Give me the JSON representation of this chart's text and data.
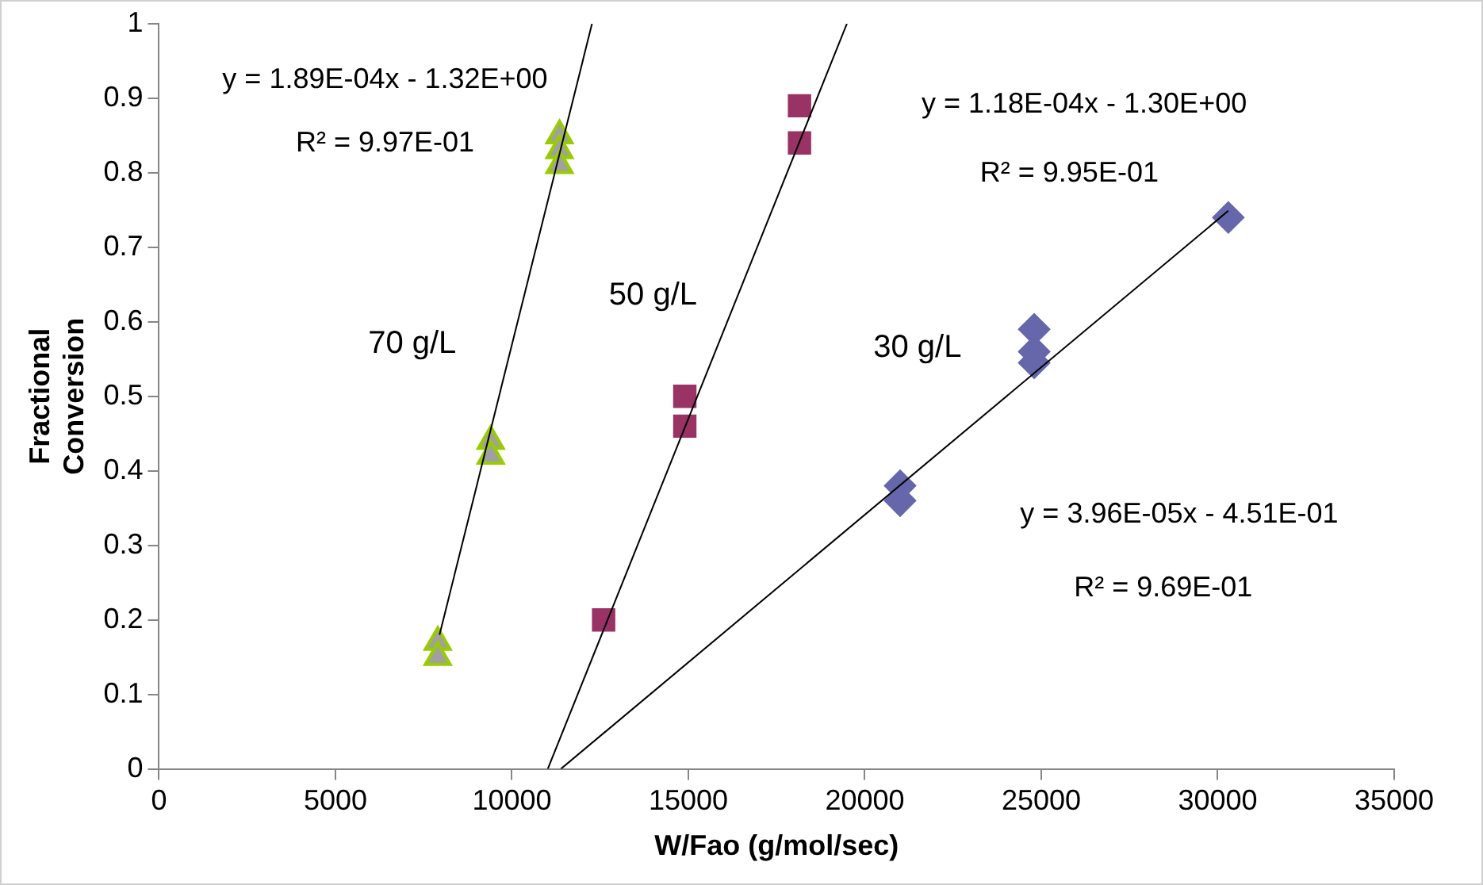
{
  "chart_data": {
    "type": "scatter",
    "xlabel": "W/Fao (g/mol/sec)",
    "ylabel": "Fractional Conversion",
    "xlim": [
      0,
      35000
    ],
    "xticks": [
      0,
      5000,
      10000,
      15000,
      20000,
      25000,
      30000,
      35000
    ],
    "ylim": [
      0,
      1
    ],
    "yticks": [
      0,
      0.1,
      0.2,
      0.3,
      0.4,
      0.5,
      0.6,
      0.7,
      0.8,
      0.9,
      1
    ],
    "grid": false,
    "legend": false,
    "series": [
      {
        "type": "scatter",
        "name": "70 g/L",
        "marker": "triangle",
        "color": "#a0a0a0",
        "x": [
          7900,
          7900,
          9400,
          9400,
          11350,
          11350,
          11350
        ],
        "values": [
          0.17,
          0.15,
          0.44,
          0.42,
          0.85,
          0.83,
          0.81
        ]
      },
      {
        "type": "scatter",
        "name": "50 g/L",
        "marker": "square",
        "color": "#993366",
        "x": [
          12600,
          14900,
          14900,
          18150,
          18150
        ],
        "values": [
          0.2,
          0.5,
          0.46,
          0.89,
          0.84
        ]
      },
      {
        "type": "scatter",
        "name": "30 g/L",
        "marker": "diamond",
        "color": "#6666aa",
        "x": [
          21000,
          21000,
          24800,
          24800,
          24800,
          30300
        ],
        "values": [
          0.38,
          0.36,
          0.59,
          0.56,
          0.545,
          0.74
        ]
      },
      {
        "type": "line",
        "marker": "none",
        "line_style": "solid",
        "color": "#000000",
        "x": [
          7950,
          12270
        ],
        "values": [
          0.18,
          1.0
        ]
      },
      {
        "type": "line",
        "marker": "none",
        "line_style": "solid",
        "color": "#000000",
        "x": [
          11017,
          19492
        ],
        "values": [
          0,
          1
        ]
      },
      {
        "type": "line",
        "marker": "none",
        "line_style": "solid",
        "color": "#000000",
        "x": [
          11389,
          30300
        ],
        "values": [
          0,
          0.749
        ]
      }
    ],
    "annotations": [
      "y = 1.89E-04x - 1.32E+00",
      "R² = 9.97E-01",
      "y = 1.18E-04x - 1.30E+00",
      "R² = 9.95E-01",
      "y = 3.96E-05x - 4.51E-01",
      "R² = 9.69E-01"
    ]
  }
}
